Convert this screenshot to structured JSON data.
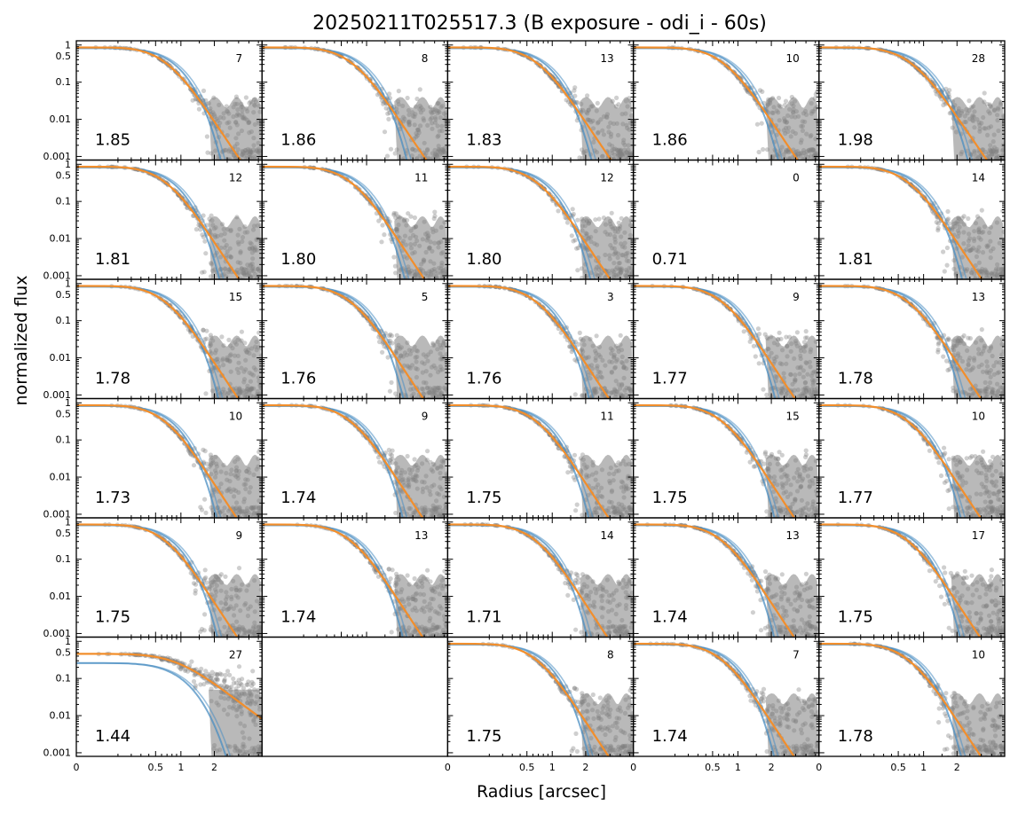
{
  "figure": {
    "title": "20250211T025517.3 (B exposure - odi_i - 60s)",
    "xlabel": "Radius [arcsec]",
    "ylabel": "normalized flux"
  },
  "chart_data": {
    "type": "scatter",
    "grid": false,
    "layout": {
      "rows": 6,
      "cols": 5
    },
    "xscale": "radius-power-0.4",
    "yscale": "log",
    "xlim": [
      0,
      4.2
    ],
    "ylim": [
      0.0008,
      1.3
    ],
    "x_ticks": [
      0,
      0.5,
      1,
      2
    ],
    "y_ticks": [
      0.001,
      0.01,
      0.1,
      0.5,
      1
    ],
    "y_tick_labels": [
      "0.001",
      "0.01",
      "0.1",
      "0.5",
      "1"
    ],
    "colors": {
      "points": "#808080",
      "fit_fwhm": "#4a8ec2",
      "fit_moffat": "#f28e2b"
    },
    "panels": [
      {
        "row": 0,
        "col": 0,
        "count": "7",
        "fwhm": "1.85"
      },
      {
        "row": 0,
        "col": 1,
        "count": "8",
        "fwhm": "1.86"
      },
      {
        "row": 0,
        "col": 2,
        "count": "13",
        "fwhm": "1.83"
      },
      {
        "row": 0,
        "col": 3,
        "count": "10",
        "fwhm": "1.86"
      },
      {
        "row": 0,
        "col": 4,
        "count": "28",
        "fwhm": "1.98"
      },
      {
        "row": 1,
        "col": 0,
        "count": "12",
        "fwhm": "1.81"
      },
      {
        "row": 1,
        "col": 1,
        "count": "11",
        "fwhm": "1.80"
      },
      {
        "row": 1,
        "col": 2,
        "count": "12",
        "fwhm": "1.80"
      },
      {
        "row": 1,
        "col": 3,
        "count": "0",
        "fwhm": "0.71",
        "empty": true
      },
      {
        "row": 1,
        "col": 4,
        "count": "14",
        "fwhm": "1.81"
      },
      {
        "row": 2,
        "col": 0,
        "count": "15",
        "fwhm": "1.78"
      },
      {
        "row": 2,
        "col": 1,
        "count": "5",
        "fwhm": "1.76"
      },
      {
        "row": 2,
        "col": 2,
        "count": "3",
        "fwhm": "1.76"
      },
      {
        "row": 2,
        "col": 3,
        "count": "9",
        "fwhm": "1.77"
      },
      {
        "row": 2,
        "col": 4,
        "count": "13",
        "fwhm": "1.78"
      },
      {
        "row": 3,
        "col": 0,
        "count": "10",
        "fwhm": "1.73"
      },
      {
        "row": 3,
        "col": 1,
        "count": "9",
        "fwhm": "1.74"
      },
      {
        "row": 3,
        "col": 2,
        "count": "11",
        "fwhm": "1.75"
      },
      {
        "row": 3,
        "col": 3,
        "count": "15",
        "fwhm": "1.75"
      },
      {
        "row": 3,
        "col": 4,
        "count": "10",
        "fwhm": "1.77"
      },
      {
        "row": 4,
        "col": 0,
        "count": "9",
        "fwhm": "1.75"
      },
      {
        "row": 4,
        "col": 1,
        "count": "13",
        "fwhm": "1.74"
      },
      {
        "row": 4,
        "col": 2,
        "count": "14",
        "fwhm": "1.71"
      },
      {
        "row": 4,
        "col": 3,
        "count": "13",
        "fwhm": "1.74"
      },
      {
        "row": 4,
        "col": 4,
        "count": "17",
        "fwhm": "1.75"
      },
      {
        "row": 5,
        "col": 0,
        "count": "27",
        "fwhm": "1.44",
        "degraded": true
      },
      {
        "row": 5,
        "col": 1,
        "blank": true
      },
      {
        "row": 5,
        "col": 2,
        "count": "8",
        "fwhm": "1.75"
      },
      {
        "row": 5,
        "col": 3,
        "count": "7",
        "fwhm": "1.74"
      },
      {
        "row": 5,
        "col": 4,
        "count": "10",
        "fwhm": "1.78"
      }
    ]
  }
}
